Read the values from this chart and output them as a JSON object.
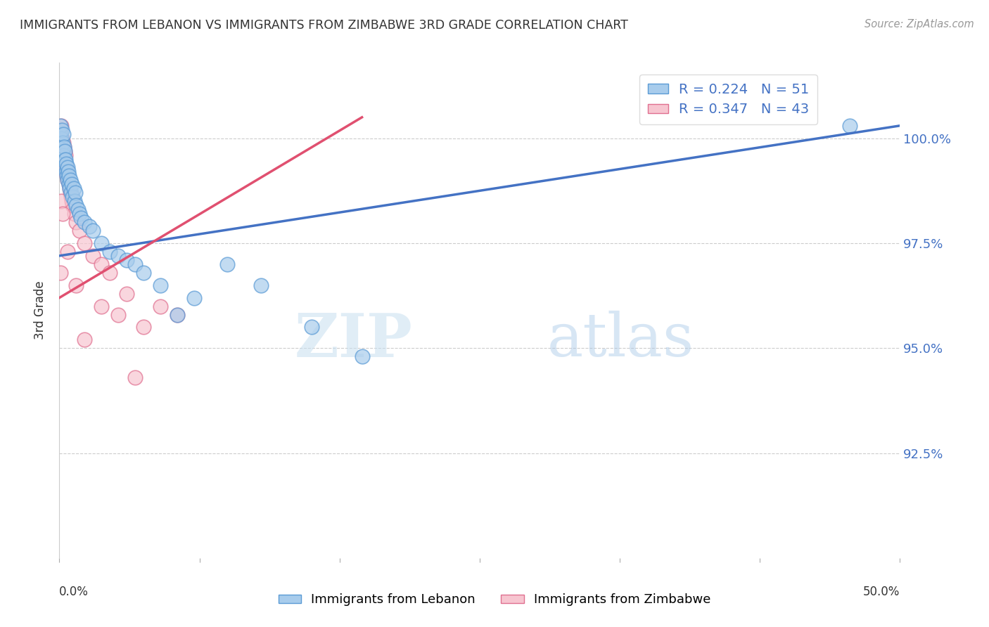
{
  "title": "IMMIGRANTS FROM LEBANON VS IMMIGRANTS FROM ZIMBABWE 3RD GRADE CORRELATION CHART",
  "source": "Source: ZipAtlas.com",
  "ylabel": "3rd Grade",
  "xlim": [
    0.0,
    50.0
  ],
  "ylim": [
    90.0,
    101.8
  ],
  "yticks": [
    92.5,
    95.0,
    97.5,
    100.0
  ],
  "ytick_labels": [
    "92.5%",
    "95.0%",
    "97.5%",
    "100.0%"
  ],
  "legend_r_lebanon": "R = 0.224",
  "legend_n_lebanon": "N = 51",
  "legend_r_zimbabwe": "R = 0.347",
  "legend_n_zimbabwe": "N = 43",
  "color_lebanon_fill": "#a8ccec",
  "color_lebanon_edge": "#5b9bd5",
  "color_zimbabwe_fill": "#f7c5d0",
  "color_zimbabwe_edge": "#e07090",
  "color_trend_lebanon": "#4472c4",
  "color_trend_zimbabwe": "#e05070",
  "watermark_zip": "ZIP",
  "watermark_atlas": "atlas",
  "lebanon_x": [
    0.05,
    0.08,
    0.1,
    0.12,
    0.15,
    0.18,
    0.2,
    0.22,
    0.25,
    0.28,
    0.3,
    0.32,
    0.35,
    0.38,
    0.4,
    0.42,
    0.45,
    0.48,
    0.5,
    0.52,
    0.55,
    0.58,
    0.6,
    0.65,
    0.7,
    0.75,
    0.8,
    0.85,
    0.9,
    0.95,
    1.0,
    1.1,
    1.2,
    1.3,
    1.5,
    1.8,
    2.0,
    2.5,
    3.0,
    3.5,
    4.0,
    4.5,
    5.0,
    6.0,
    7.0,
    8.0,
    10.0,
    12.0,
    15.0,
    18.0,
    47.0
  ],
  "lebanon_y": [
    100.1,
    100.3,
    99.8,
    100.0,
    100.2,
    99.7,
    99.9,
    100.1,
    99.6,
    99.8,
    99.5,
    99.7,
    99.3,
    99.5,
    99.2,
    99.4,
    99.1,
    99.3,
    99.0,
    99.2,
    98.9,
    99.1,
    98.8,
    99.0,
    98.7,
    98.9,
    98.6,
    98.8,
    98.5,
    98.7,
    98.4,
    98.3,
    98.2,
    98.1,
    98.0,
    97.9,
    97.8,
    97.5,
    97.3,
    97.2,
    97.1,
    97.0,
    96.8,
    96.5,
    95.8,
    96.2,
    97.0,
    96.5,
    95.5,
    94.8,
    100.3
  ],
  "zimbabwe_x": [
    0.05,
    0.08,
    0.1,
    0.12,
    0.15,
    0.18,
    0.2,
    0.22,
    0.25,
    0.28,
    0.3,
    0.32,
    0.35,
    0.38,
    0.4,
    0.45,
    0.5,
    0.55,
    0.6,
    0.65,
    0.7,
    0.75,
    0.8,
    0.9,
    1.0,
    1.2,
    1.5,
    2.0,
    2.5,
    3.0,
    4.0,
    5.0,
    6.0,
    7.0,
    0.05,
    0.1,
    0.2,
    0.5,
    1.0,
    1.5,
    2.5,
    3.5,
    4.5
  ],
  "zimbabwe_y": [
    100.2,
    100.1,
    100.3,
    99.9,
    100.0,
    99.8,
    99.7,
    99.9,
    99.6,
    99.8,
    99.5,
    99.7,
    99.4,
    99.6,
    99.3,
    99.1,
    99.0,
    98.9,
    98.8,
    98.7,
    98.6,
    98.5,
    98.4,
    98.2,
    98.0,
    97.8,
    97.5,
    97.2,
    97.0,
    96.8,
    96.3,
    95.5,
    96.0,
    95.8,
    96.8,
    98.5,
    98.2,
    97.3,
    96.5,
    95.2,
    96.0,
    95.8,
    94.3
  ],
  "trend_lebanon_x0": 0.0,
  "trend_lebanon_y0": 97.2,
  "trend_lebanon_x1": 50.0,
  "trend_lebanon_y1": 100.3,
  "trend_zimbabwe_x0": 0.0,
  "trend_zimbabwe_y0": 96.2,
  "trend_zimbabwe_x1": 18.0,
  "trend_zimbabwe_y1": 100.5
}
